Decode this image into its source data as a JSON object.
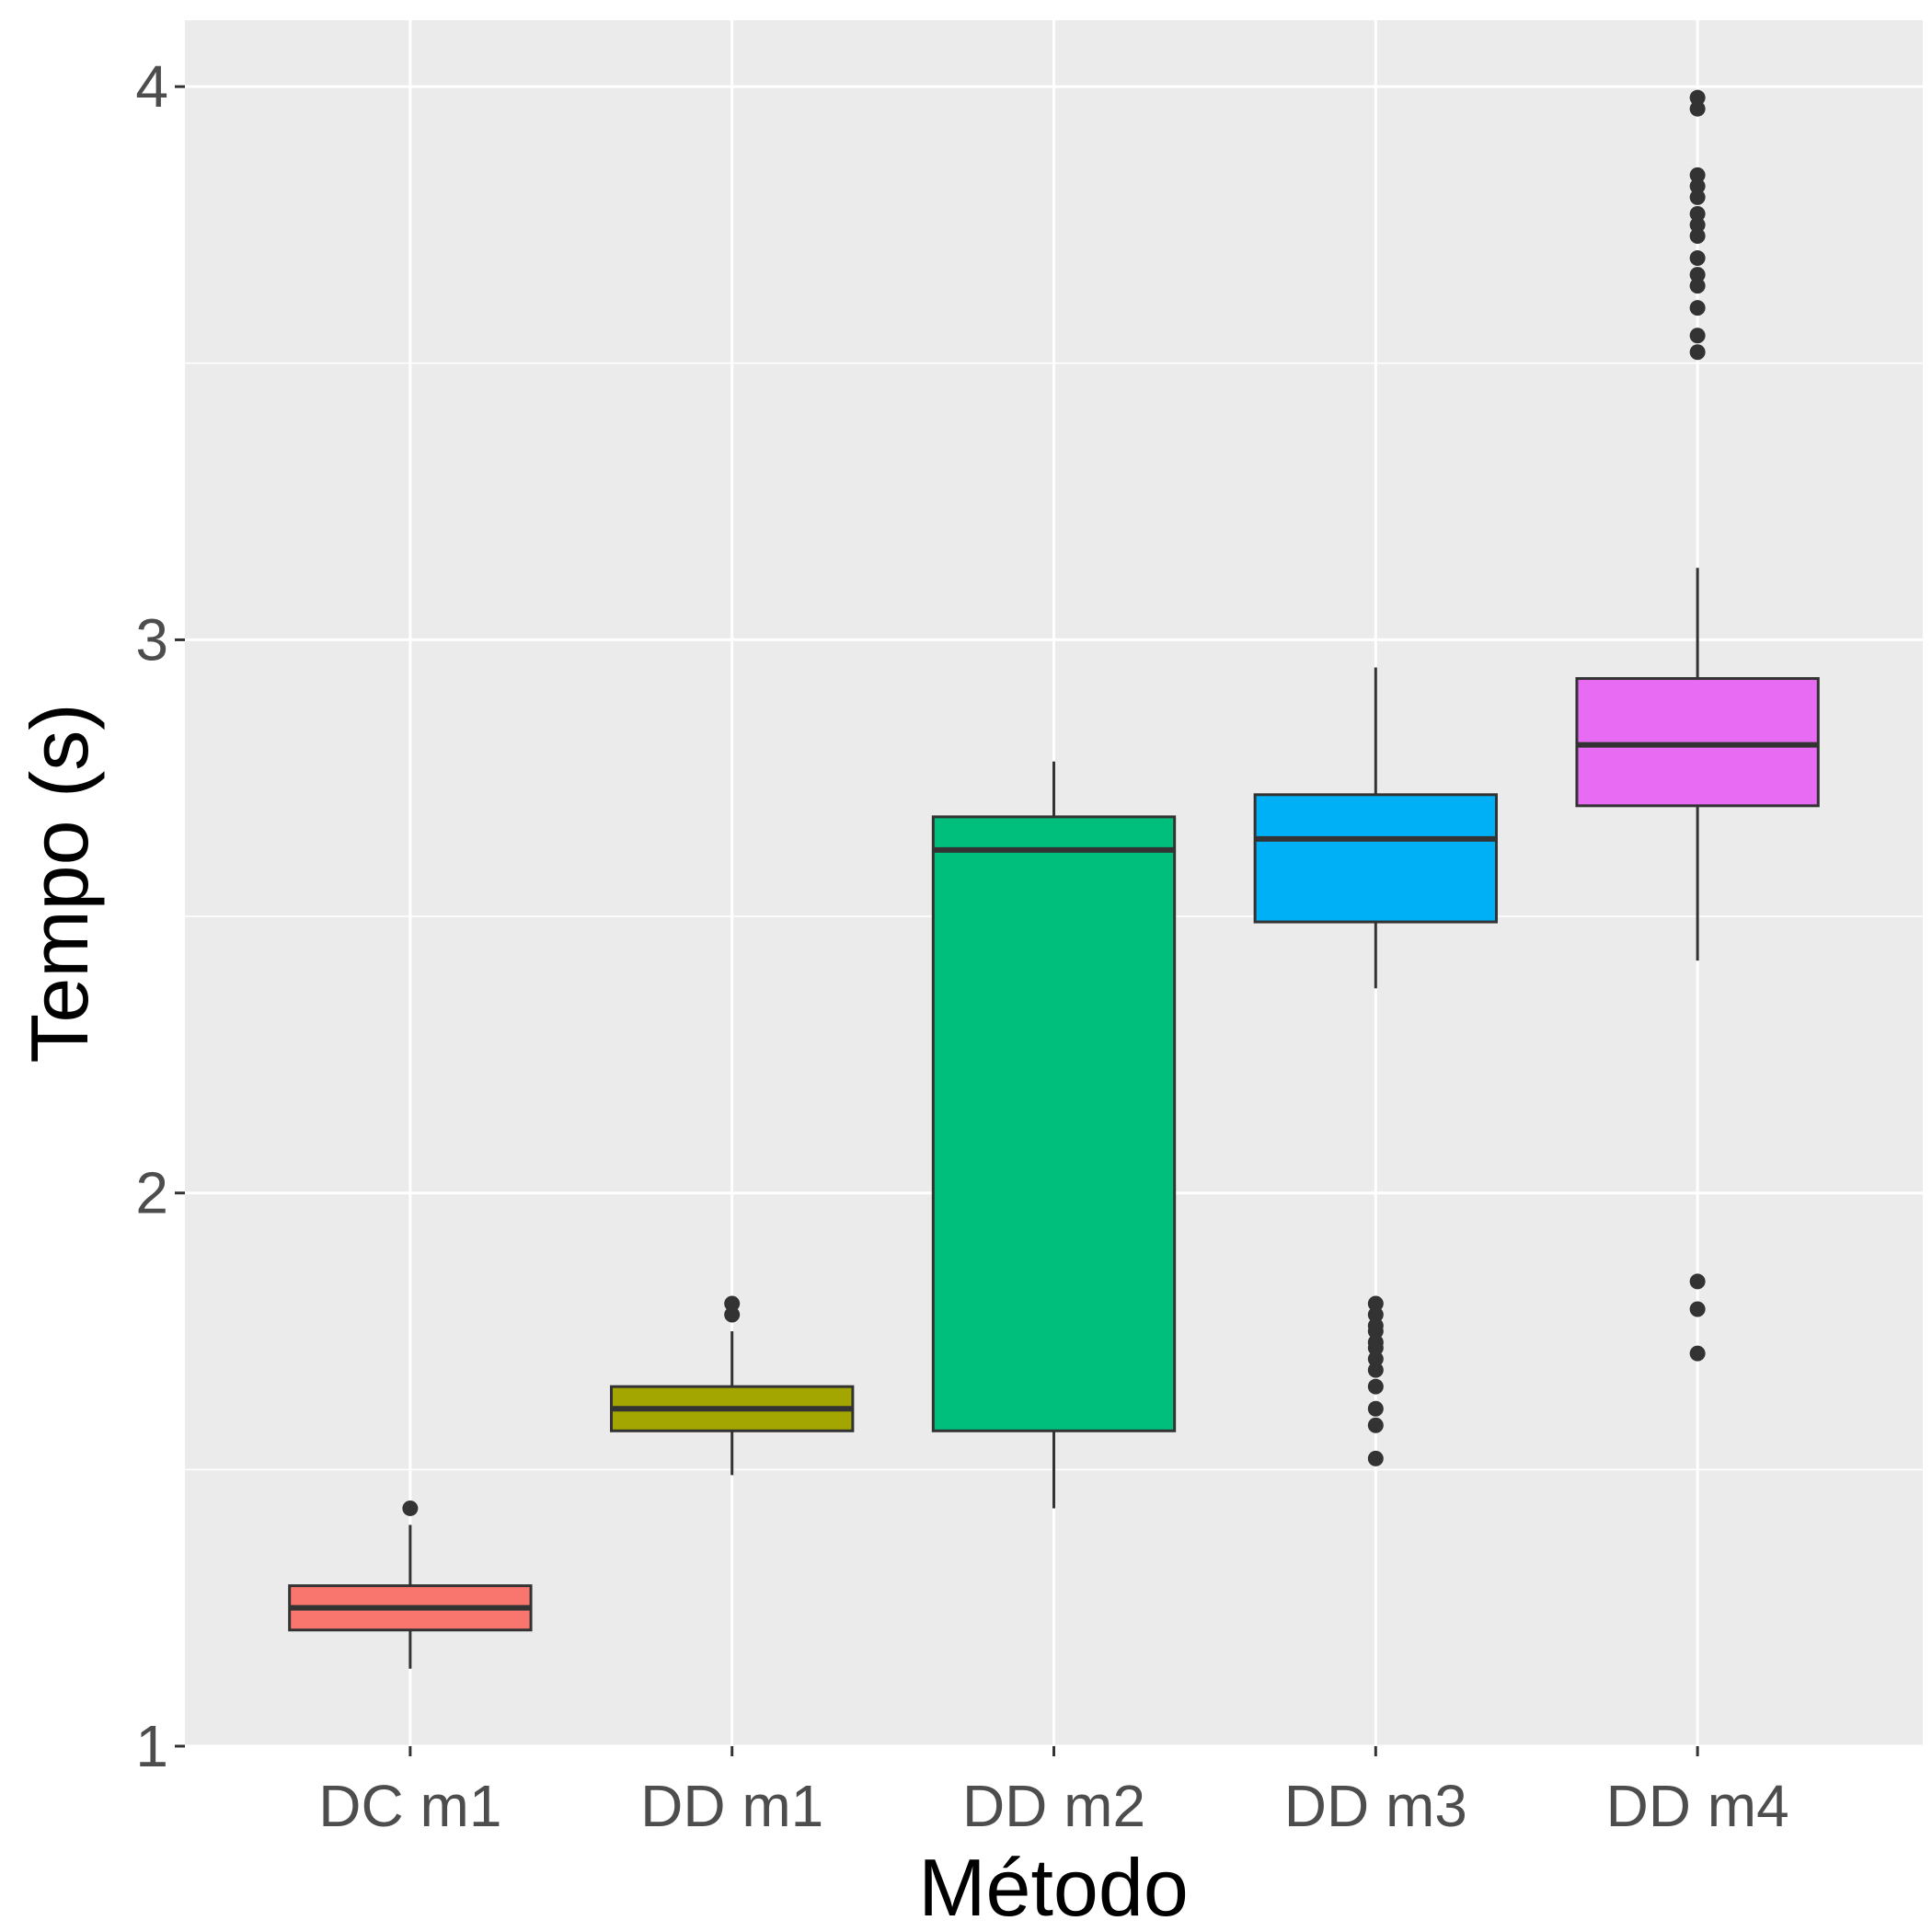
{
  "chart_data": {
    "type": "boxplot",
    "title": "",
    "xlabel": "Método",
    "ylabel": "Tempo (s)",
    "ylim": [
      1,
      4.12
    ],
    "y_ticks": [
      1,
      2,
      3,
      4
    ],
    "y_minor_ticks": [
      1.5,
      2.5,
      3.5
    ],
    "grid": true,
    "legend": "none",
    "categories": [
      "DC m1",
      "DD m1",
      "DD m2",
      "DD m3",
      "DD m4"
    ],
    "boxes": [
      {
        "category": "DC m1",
        "color": "#F8766D",
        "whisker_low": 1.14,
        "q1": 1.21,
        "median": 1.25,
        "q3": 1.29,
        "whisker_high": 1.4,
        "outliers": [
          1.43
        ]
      },
      {
        "category": "DD m1",
        "color": "#A3A500",
        "whisker_low": 1.49,
        "q1": 1.57,
        "median": 1.61,
        "q3": 1.65,
        "whisker_high": 1.75,
        "outliers": [
          1.8,
          1.78
        ]
      },
      {
        "category": "DD m2",
        "color": "#00BF7D",
        "whisker_low": 1.43,
        "q1": 1.57,
        "median": 2.62,
        "q3": 2.68,
        "whisker_high": 2.78,
        "outliers": []
      },
      {
        "category": "DD m3",
        "color": "#00B0F6",
        "whisker_low": 2.37,
        "q1": 2.49,
        "median": 2.64,
        "q3": 2.72,
        "whisker_high": 2.95,
        "outliers": [
          1.8,
          1.78,
          1.76,
          1.75,
          1.73,
          1.72,
          1.7,
          1.68,
          1.65,
          1.61,
          1.58,
          1.52
        ]
      },
      {
        "category": "DD m4",
        "color": "#E76BF3",
        "whisker_low": 2.42,
        "q1": 2.7,
        "median": 2.81,
        "q3": 2.93,
        "whisker_high": 3.13,
        "outliers": [
          3.98,
          3.96,
          3.84,
          3.82,
          3.8,
          3.77,
          3.75,
          3.73,
          3.69,
          3.66,
          3.64,
          3.6,
          3.55,
          3.52,
          1.84,
          1.79,
          1.71
        ]
      }
    ]
  }
}
